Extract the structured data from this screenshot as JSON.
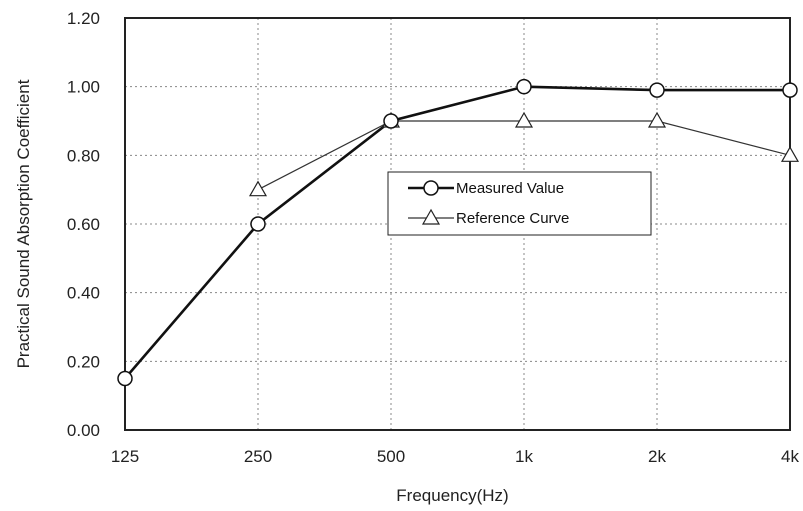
{
  "chart_data": {
    "type": "line",
    "x": [
      "125",
      "250",
      "500",
      "1k",
      "2k",
      "4k"
    ],
    "xlabel": "Frequency(Hz)",
    "ylabel": "Practical Sound Absorption Coefficient",
    "ylim": [
      0,
      1.2
    ],
    "yticks": [
      "0.00",
      "0.20",
      "0.40",
      "0.60",
      "0.80",
      "1.00",
      "1.20"
    ],
    "grid": true,
    "legend_position": "center-right",
    "series": [
      {
        "name": "Measured Value",
        "marker": "circle",
        "color": "#111111",
        "values": [
          0.15,
          0.6,
          0.9,
          1.0,
          0.99,
          0.99
        ]
      },
      {
        "name": "Reference Curve",
        "marker": "triangle",
        "color": "#333333",
        "values": [
          null,
          0.7,
          0.9,
          0.9,
          0.9,
          0.8
        ]
      }
    ]
  }
}
